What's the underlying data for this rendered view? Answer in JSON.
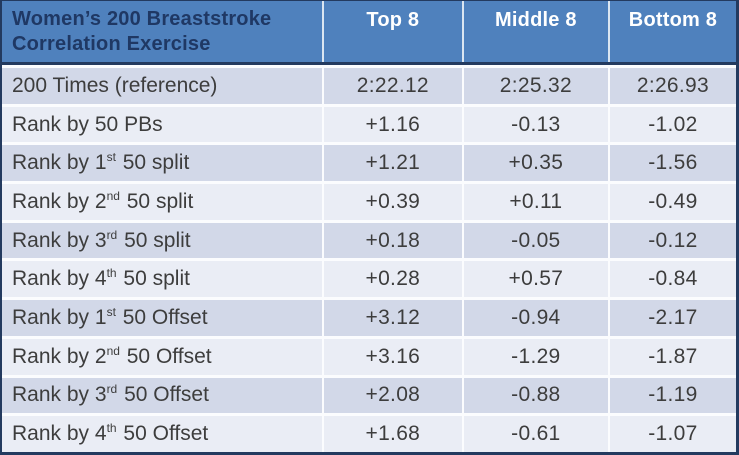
{
  "header": {
    "title": "Women’s 200 Breaststroke Correlation Exercise",
    "columns": [
      "Top 8",
      "Middle 8",
      "Bottom 8"
    ]
  },
  "rows": [
    {
      "label_prefix": "200 Times (reference)",
      "label_sup": "",
      "label_suffix": "",
      "values": [
        "2:22.12",
        "2:25.32",
        "2:26.93"
      ]
    },
    {
      "label_prefix": "Rank by 50 PBs",
      "label_sup": "",
      "label_suffix": "",
      "values": [
        "+1.16",
        "-0.13",
        "-1.02"
      ]
    },
    {
      "label_prefix": "Rank by 1",
      "label_sup": "st",
      "label_suffix": " 50 split",
      "values": [
        "+1.21",
        "+0.35",
        "-1.56"
      ]
    },
    {
      "label_prefix": "Rank by 2",
      "label_sup": "nd",
      "label_suffix": " 50 split",
      "values": [
        "+0.39",
        "+0.11",
        "-0.49"
      ]
    },
    {
      "label_prefix": "Rank by 3",
      "label_sup": "rd",
      "label_suffix": " 50 split",
      "values": [
        "+0.18",
        "-0.05",
        "-0.12"
      ]
    },
    {
      "label_prefix": "Rank by 4",
      "label_sup": "th",
      "label_suffix": " 50 split",
      "values": [
        "+0.28",
        "+0.57",
        "-0.84"
      ]
    },
    {
      "label_prefix": "Rank by 1",
      "label_sup": "st",
      "label_suffix": " 50 Offset",
      "values": [
        "+3.12",
        "-0.94",
        "-2.17"
      ]
    },
    {
      "label_prefix": "Rank by 2",
      "label_sup": "nd",
      "label_suffix": " 50 Offset",
      "values": [
        "+3.16",
        "-1.29",
        "-1.87"
      ]
    },
    {
      "label_prefix": "Rank by 3",
      "label_sup": "rd",
      "label_suffix": " 50 Offset",
      "values": [
        "+2.08",
        "-0.88",
        "-1.19"
      ]
    },
    {
      "label_prefix": "Rank by 4",
      "label_sup": "th",
      "label_suffix": " 50 Offset",
      "values": [
        "+1.68",
        "-0.61",
        "-1.07"
      ]
    }
  ],
  "colors": {
    "header_blue": "#4f81bd",
    "title_navy": "#1f3864",
    "header_text_white": "#ffffff",
    "band_dark": "#d2d8e8",
    "band_light": "#eaedf5",
    "grid_separator": "#fbfcfe",
    "outer_border_navy": "#233a5f",
    "body_text": "#3d3d3d"
  },
  "chart_data": {
    "type": "table",
    "title": "Women’s 200 Breaststroke Correlation Exercise",
    "columns": [
      "Top 8",
      "Middle 8",
      "Bottom 8"
    ],
    "row_labels": [
      "200 Times (reference)",
      "Rank by 50 PBs",
      "Rank by 1st 50 split",
      "Rank by 2nd 50 split",
      "Rank by 3rd 50 split",
      "Rank by 4th 50 split",
      "Rank by 1st 50 Offset",
      "Rank by 2nd 50 Offset",
      "Rank by 3rd 50 Offset",
      "Rank by 4th 50 Offset"
    ],
    "rows": [
      [
        "2:22.12",
        "2:25.32",
        "2:26.93"
      ],
      [
        "+1.16",
        "-0.13",
        "-1.02"
      ],
      [
        "+1.21",
        "+0.35",
        "-1.56"
      ],
      [
        "+0.39",
        "+0.11",
        "-0.49"
      ],
      [
        "+0.18",
        "-0.05",
        "-0.12"
      ],
      [
        "+0.28",
        "+0.57",
        "-0.84"
      ],
      [
        "+3.12",
        "-0.94",
        "-2.17"
      ],
      [
        "+3.16",
        "-1.29",
        "-1.87"
      ],
      [
        "+2.08",
        "-0.88",
        "-1.19"
      ],
      [
        "+1.68",
        "-0.61",
        "-1.07"
      ]
    ],
    "notes": "Banded-row correlation table; first data row shows reference 200m times, remaining rows show average time offsets by ranking method"
  }
}
